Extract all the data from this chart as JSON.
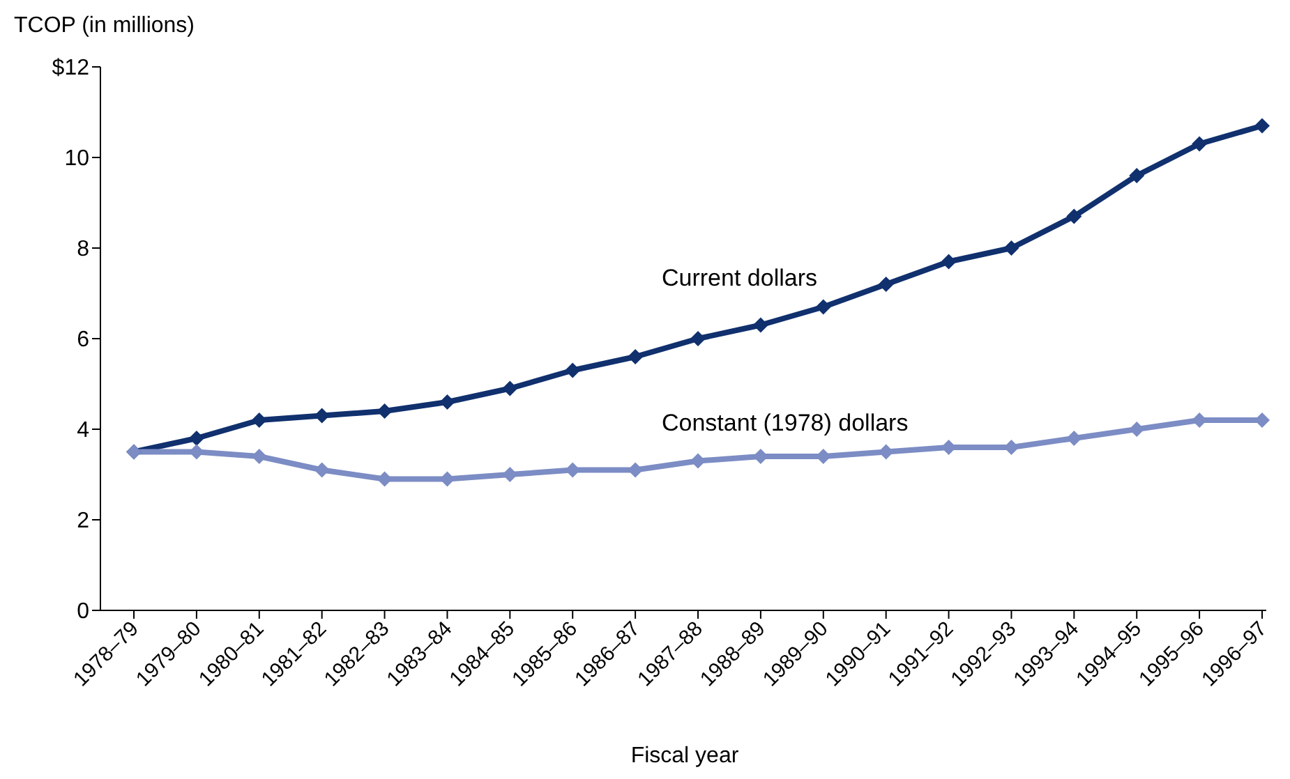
{
  "chart_data": {
    "type": "line",
    "ylabel": "TCOP (in millions)",
    "xlabel": "Fiscal year",
    "categories": [
      "1978–79",
      "1979–80",
      "1980–81",
      "1981–82",
      "1982–83",
      "1983–84",
      "1984–85",
      "1985–86",
      "1986–87",
      "1987–88",
      "1988–89",
      "1989–90",
      "1990–91",
      "1991–92",
      "1992–93",
      "1993–94",
      "1994–95",
      "1995–96",
      "1996–97"
    ],
    "series": [
      {
        "name": "Current dollars",
        "color": "#10306e",
        "values": [
          3.5,
          3.8,
          4.2,
          4.3,
          4.4,
          4.6,
          4.9,
          5.3,
          5.6,
          6.0,
          6.3,
          6.7,
          7.2,
          7.7,
          8.0,
          8.7,
          9.6,
          10.3,
          10.7
        ]
      },
      {
        "name": "Constant (1978) dollars",
        "color": "#7c8cc4",
        "values": [
          3.5,
          3.5,
          3.4,
          3.1,
          2.9,
          2.9,
          3.0,
          3.1,
          3.1,
          3.3,
          3.4,
          3.4,
          3.5,
          3.6,
          3.6,
          3.8,
          4.0,
          4.2,
          4.2
        ]
      }
    ],
    "ylim": [
      0,
      12
    ],
    "yticks": [
      0,
      2,
      4,
      6,
      8,
      10,
      {
        "value": 12,
        "label": "$12"
      }
    ],
    "grid": false,
    "legend": false,
    "marker": "diamond",
    "line_style": "solid"
  }
}
